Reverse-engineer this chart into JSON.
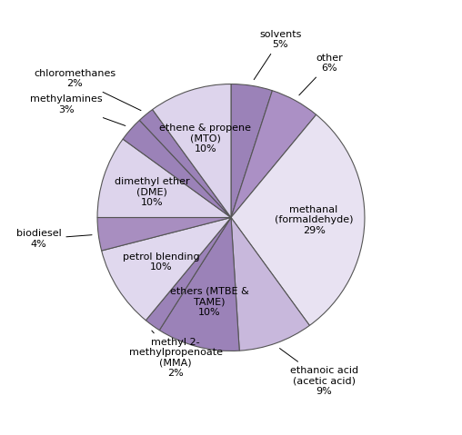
{
  "segments": [
    {
      "label": "solvents\n5%",
      "value": 5,
      "color": "#9b82b8"
    },
    {
      "label": "other\n6%",
      "value": 6,
      "color": "#ab90c5"
    },
    {
      "label": "methanal\n(formaldehyde)\n29%",
      "value": 29,
      "color": "#e8e2f2"
    },
    {
      "label": "ethanoic acid\n(acetic acid)\n9%",
      "value": 9,
      "color": "#c8b8dc"
    },
    {
      "label": "ethers (MTBE &\nTAME)\n10%",
      "value": 10,
      "color": "#9b82b8"
    },
    {
      "label": "methyl 2-\nmethylpropenoate\n(MMA)\n2%",
      "value": 2,
      "color": "#9b82b8"
    },
    {
      "label": "petrol blending\n10%",
      "value": 10,
      "color": "#e0d8ee"
    },
    {
      "label": "biodiesel\n4%",
      "value": 4,
      "color": "#a88ec0"
    },
    {
      "label": "dimethyl ether\n(DME)\n10%",
      "value": 10,
      "color": "#ddd4ec"
    },
    {
      "label": "methylamines\n3%",
      "value": 3,
      "color": "#9b82b8"
    },
    {
      "label": "chloromethanes\n2%",
      "value": 2,
      "color": "#9b82b8"
    },
    {
      "label": "ethene & propene\n(MTO)\n10%",
      "value": 10,
      "color": "#ddd4ec"
    }
  ],
  "startangle": 90,
  "figsize": [
    5.08,
    4.79
  ],
  "dpi": 100,
  "label_fontsize": 8,
  "edge_color": "#555555",
  "edge_width": 0.8,
  "label_distance": 1.18
}
